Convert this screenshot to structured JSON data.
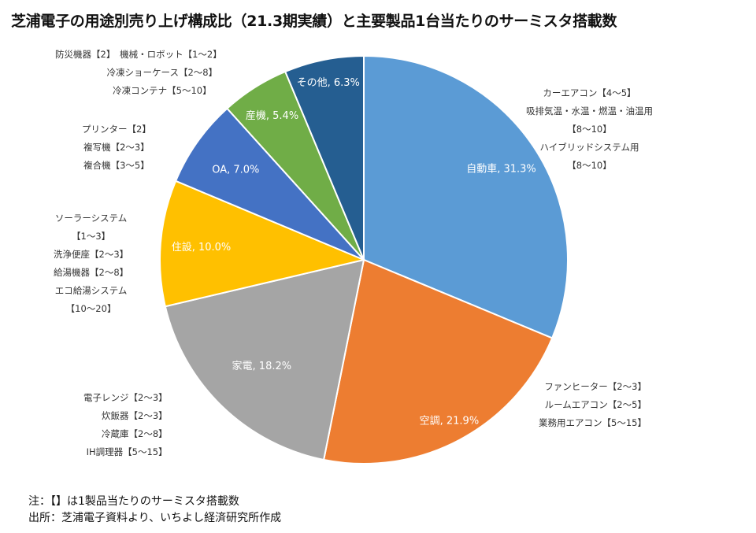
{
  "chart_data": {
    "type": "pie",
    "title": "芝浦電子の用途別売り上げ構成比（21.3期実績）と主要製品1台当たりのサーミスタ搭載数",
    "unit": "%",
    "start": "top, clockwise",
    "slices": [
      {
        "label": "自動車",
        "value": 31.3,
        "data_label": "自動車, 31.3%",
        "color": "#5B9BD5"
      },
      {
        "label": "空調",
        "value": 21.9,
        "data_label": "空調, 21.9%",
        "color": "#ED7D31"
      },
      {
        "label": "家電",
        "value": 18.2,
        "data_label": "家電, 18.2%",
        "color": "#A5A5A5"
      },
      {
        "label": "住設",
        "value": 10.0,
        "data_label": "住設, 10.0%",
        "color": "#FFC000"
      },
      {
        "label": "OA",
        "value": 7.0,
        "data_label": "OA, 7.0%",
        "color": "#4472C4"
      },
      {
        "label": "産機",
        "value": 5.4,
        "data_label": "産機, 5.4%",
        "color": "#70AD47"
      },
      {
        "label": "その他",
        "value": 6.3,
        "data_label": "その他, 6.3%",
        "color": "#255E91"
      }
    ],
    "annotations": {
      "other": [
        "防災機器【2】　機械・ロボット【1～2】",
        "冷凍ショーケース【2～8】",
        "冷凍コンテナ【5～10】"
      ],
      "oa": [
        "プリンター【2】",
        "複写機【2～3】",
        "複合機【3～5】"
      ],
      "housing": [
        "ソーラーシステム",
        "【1～3】",
        "洗浄便座【2～3】",
        "給湯機器【2～8】",
        "エコ給湯システム",
        "【10～20】"
      ],
      "appliance": [
        "電子レンジ【2～3】",
        "炊飯器【2～3】",
        "冷蔵庫【2～8】",
        "IH調理器【5～15】"
      ],
      "auto": [
        "カーエアコン【4～5】",
        "吸排気温・水温・燃温・油温用",
        "【8～10】",
        "ハイブリッドシステム用",
        "【8～10】"
      ],
      "aircon": [
        "ファンヒーター【2～3】",
        "ルームエアコン【2～5】",
        "業務用エアコン【5～15】"
      ]
    },
    "notes": [
      "注：【】は1製品当たりのサーミスタ搭載数",
      "出所：芝浦電子資料より、いちよし経済研究所作成"
    ]
  }
}
